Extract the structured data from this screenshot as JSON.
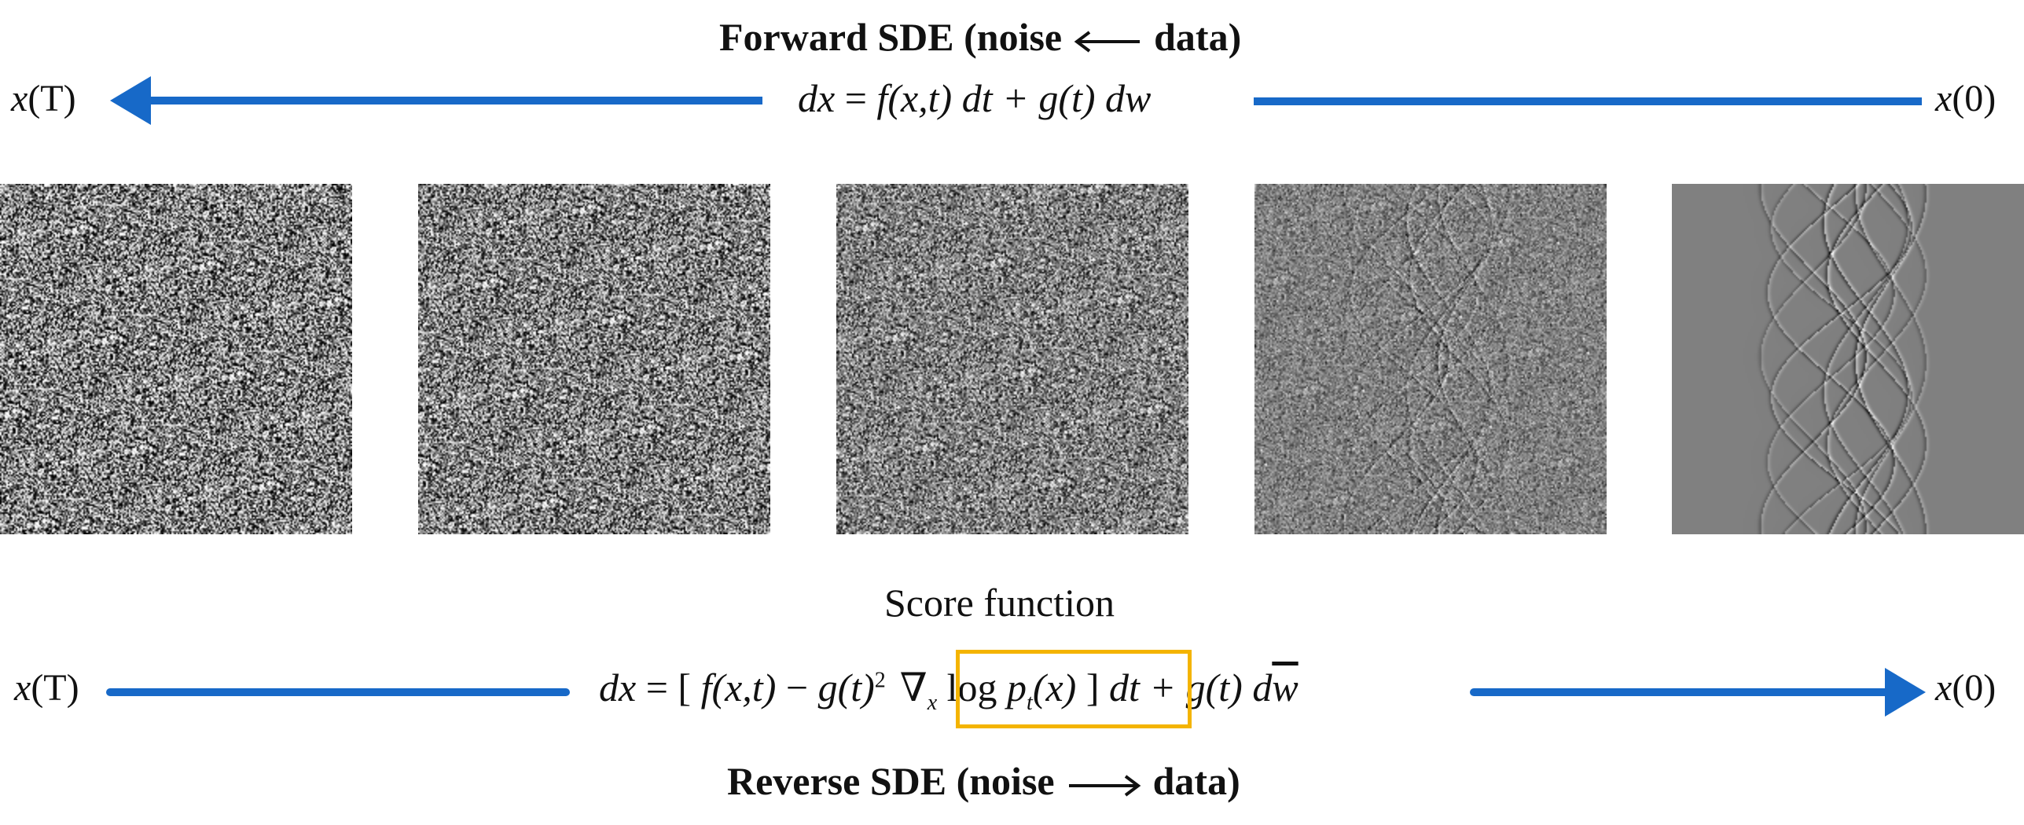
{
  "forward": {
    "title_prefix": "Forward SDE (noise ",
    "title_suffix": " data)",
    "left_label_x": "x",
    "left_label_arg": "(T)",
    "right_label_x": "x",
    "right_label_arg": "(0)",
    "equation": {
      "part1": "dx",
      "part2": " = ",
      "part3": "f",
      "part4": "(x,t)",
      "part5": " dt + ",
      "part6": "g",
      "part7": "(t)",
      "part8": " dw"
    }
  },
  "reverse": {
    "score_label": "Score function",
    "title_prefix": "Reverse SDE (noise ",
    "title_suffix": " data)",
    "left_label_x": "x",
    "left_label_arg": "(T)",
    "right_label_x": "x",
    "right_label_arg": "(0)",
    "equation": {
      "dx": "dx",
      "eq": " = [ ",
      "f": "f",
      "fx": "(x,t)",
      "minus": " − ",
      "g": "g",
      "gt": "(t)",
      "sq": "2",
      "nabla": "∇",
      "sub_x": "x",
      "log": " log ",
      "p": "p",
      "sub_t": "t",
      "px": "(x)",
      "close": " ] ",
      "dt": "dt + ",
      "g2": "g",
      "gt2": "(t)",
      "dw": " d",
      "wbar": "w"
    }
  },
  "colors": {
    "arrow_blue": "#1769c8",
    "highlight": "#f4b400"
  },
  "panels": [
    {
      "noise_level": 1.0
    },
    {
      "noise_level": 0.85
    },
    {
      "noise_level": 0.6
    },
    {
      "noise_level": 0.3
    },
    {
      "noise_level": 0.0
    }
  ]
}
